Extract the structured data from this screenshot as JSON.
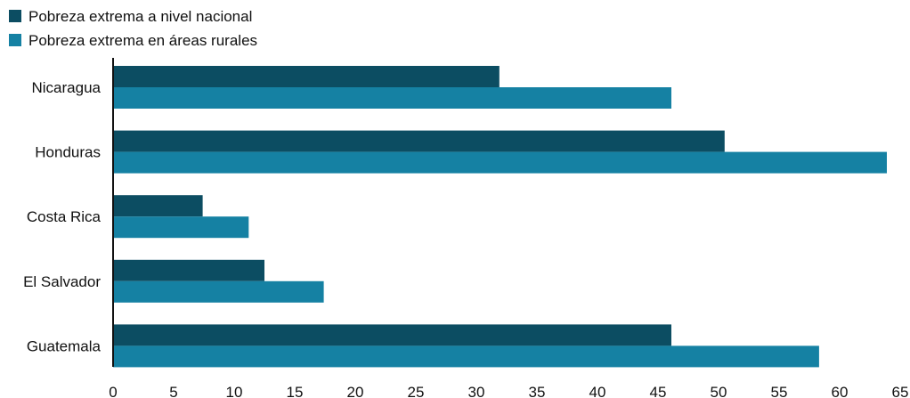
{
  "chart_data": {
    "type": "bar",
    "orientation": "horizontal",
    "categories": [
      "Nicaragua",
      "Honduras",
      "Costa Rica",
      "El Salvador",
      "Guatemala"
    ],
    "series": [
      {
        "name": "Pobreza extrema a nivel nacional",
        "color": "#0c4d62",
        "values": [
          31.9,
          50.5,
          7.4,
          12.5,
          46.1
        ]
      },
      {
        "name": "Pobreza extrema en áreas rurales",
        "color": "#1581a3",
        "values": [
          46.1,
          63.9,
          11.2,
          17.4,
          58.3
        ]
      }
    ],
    "xlim": [
      0,
      65
    ],
    "xticks": [
      "0",
      "5",
      "10",
      "15",
      "20",
      "25",
      "30",
      "35",
      "40",
      "45",
      "50",
      "55",
      "60",
      "65"
    ],
    "grid": false,
    "legend_position": "top-left",
    "title": "",
    "xlabel": "",
    "ylabel": ""
  }
}
